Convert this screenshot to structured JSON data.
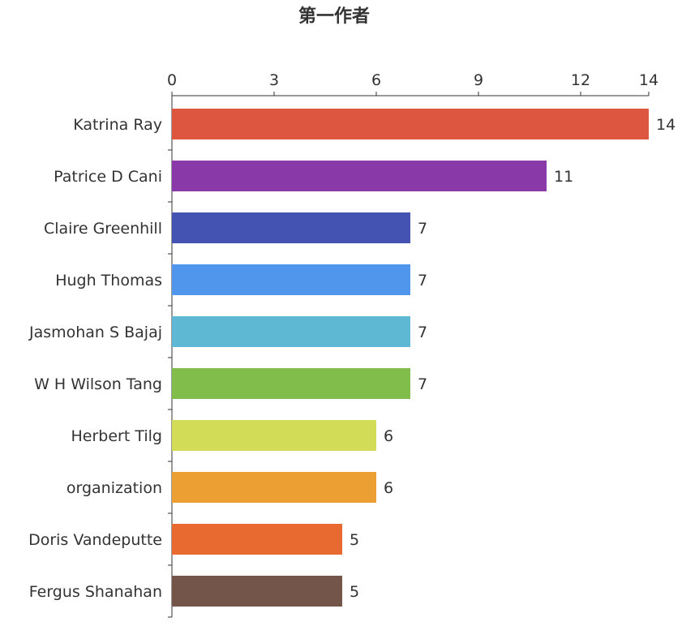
{
  "chart_data": {
    "type": "bar",
    "orientation": "horizontal",
    "title": "第一作者",
    "categories": [
      "Katrina Ray",
      "Patrice D Cani",
      "Claire Greenhill",
      "Hugh Thomas",
      "Jasmohan S Bajaj",
      "W H Wilson Tang",
      "Herbert Tilg",
      "organization",
      "Doris Vandeputte",
      "Fergus Shanahan"
    ],
    "values": [
      14,
      11,
      7,
      7,
      7,
      7,
      6,
      6,
      5,
      5
    ],
    "colors": [
      "#dc5640",
      "#8a3aa8",
      "#4452b2",
      "#5096ec",
      "#5eb8d3",
      "#80bd4b",
      "#d2dc56",
      "#eca033",
      "#e86a31",
      "#735649"
    ],
    "xlim": [
      0,
      14
    ],
    "xticks": [
      0,
      3,
      6,
      9,
      12,
      14
    ],
    "axis_position": "top",
    "data_labels": true,
    "grid": false
  }
}
